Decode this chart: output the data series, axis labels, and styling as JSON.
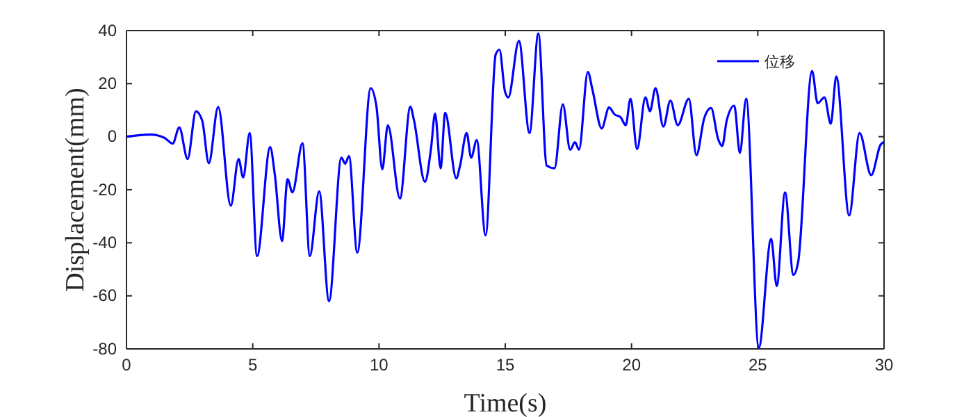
{
  "chart_data": {
    "type": "line",
    "xlabel": "Time(s)",
    "ylabel": "Displacement(mm)",
    "xlim": [
      0,
      30
    ],
    "xticks": [
      0,
      5,
      10,
      15,
      20,
      25,
      30
    ],
    "ylim": [
      -80,
      40
    ],
    "yticks": [
      -80,
      -60,
      -40,
      -20,
      0,
      20,
      40
    ],
    "grid": false,
    "legend": "top right",
    "line_style": "solid",
    "marker": "none",
    "series": [
      {
        "name": "位移",
        "color": "#0000ff",
        "x": [
          0,
          0.95,
          1.5,
          1.83,
          2.09,
          2.42,
          2.75,
          3.0,
          3.26,
          3.63,
          4.13,
          4.44,
          4.62,
          4.88,
          5.17,
          5.69,
          5.87,
          6.16,
          6.38,
          6.57,
          6.97,
          7.26,
          7.63,
          8.02,
          8.51,
          8.66,
          8.81,
          9.14,
          9.67,
          9.9,
          10.13,
          10.35,
          10.83,
          11.24,
          11.38,
          11.82,
          12.06,
          12.22,
          12.44,
          12.62,
          13.06,
          13.21,
          13.47,
          13.65,
          13.87,
          14.22,
          14.62,
          14.77,
          14.99,
          15.12,
          15.54,
          15.96,
          16.31,
          16.64,
          16.95,
          17.28,
          17.57,
          17.76,
          17.92,
          18.27,
          18.45,
          18.82,
          19.11,
          19.33,
          19.57,
          19.77,
          19.96,
          20.22,
          20.55,
          20.73,
          20.95,
          21.26,
          21.54,
          21.83,
          22.27,
          22.57,
          22.88,
          23.15,
          23.43,
          23.59,
          23.77,
          24.07,
          24.29,
          24.54,
          25.04,
          25.53,
          25.75,
          26.08,
          26.41,
          26.6,
          27.15,
          27.37,
          27.64,
          27.89,
          28.11,
          28.62,
          29.03,
          29.49,
          29.86,
          30
        ],
        "values": [
          0,
          0.8,
          -0.4,
          -2.6,
          3.5,
          -8.4,
          9.6,
          6,
          -10,
          11.2,
          -26,
          -8.4,
          -15.4,
          1.4,
          -45,
          -3.9,
          -14,
          -39.3,
          -16,
          -21,
          -2.5,
          -45,
          -20.6,
          -62,
          -7.9,
          -10.2,
          -7.3,
          -43.7,
          18.3,
          11.3,
          -12.3,
          4.3,
          -23.3,
          11.3,
          6.4,
          -17,
          -4.4,
          8.7,
          -11.9,
          9,
          -15.7,
          -10.9,
          1.4,
          -7.9,
          -1.3,
          -37.2,
          31,
          32.8,
          17,
          14.8,
          36.1,
          1.4,
          38.9,
          -10.9,
          -11.9,
          12.2,
          -4.9,
          -2.1,
          -4.9,
          24.4,
          17.8,
          3.1,
          11,
          8.4,
          7.3,
          4.3,
          14.3,
          -4.7,
          14.8,
          9.6,
          18.3,
          3.8,
          13.6,
          4.3,
          14.3,
          -7,
          7,
          10.8,
          -0.9,
          -3.5,
          6.1,
          11.7,
          -6.1,
          14.3,
          -79.5,
          -38.5,
          -56.3,
          -21,
          -52.1,
          -47.2,
          24.8,
          12.6,
          14.8,
          4.9,
          22.7,
          -29.7,
          1.4,
          -14.5,
          -3.1,
          -2
        ]
      }
    ]
  }
}
